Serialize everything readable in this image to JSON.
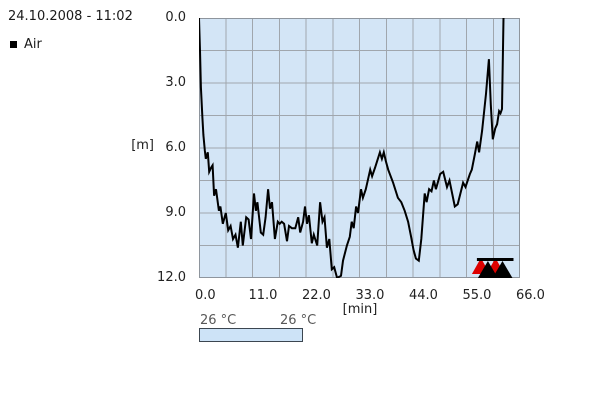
{
  "header": {
    "datetime": "24.10.2008 - 11:02"
  },
  "legend": {
    "gas_label": "Air",
    "swatch_color": "#000000"
  },
  "temperature": {
    "start_label": "26 °C",
    "end_label": "26 °C",
    "bar_fill": "#cde3f7",
    "bar_border": "#3c4650"
  },
  "chart_data": {
    "type": "line",
    "title": "",
    "xlabel": "[min]",
    "ylabel": "[m]",
    "xlim": [
      0,
      66
    ],
    "ylim": [
      12,
      0
    ],
    "y_axis_inverted_depth": true,
    "x_ticks": [
      "0.0",
      "11.0",
      "22.0",
      "33.0",
      "44.0",
      "55.0",
      "66.0"
    ],
    "y_ticks": [
      "0.0",
      "3.0",
      "6.0",
      "9.0",
      "12.0"
    ],
    "grid": {
      "on": true,
      "x_step_min": 5.5,
      "y_step_m": 1.5
    },
    "colors": {
      "plot_bg": "#d3e5f6",
      "grid": "#a0a6ad",
      "border": "#8e959d",
      "line": "#000000",
      "alarm_red": "#dd0000",
      "alarm_black": "#000000"
    },
    "series": [
      {
        "name": "Depth",
        "units": {
          "x": "min",
          "y": "m"
        },
        "points": [
          [
            0,
            0
          ],
          [
            0.2,
            1.5
          ],
          [
            0.4,
            3.2
          ],
          [
            0.7,
            4.6
          ],
          [
            0.9,
            5.4
          ],
          [
            1.2,
            6.1
          ],
          [
            1.4,
            6.5
          ],
          [
            1.8,
            6.2
          ],
          [
            2.1,
            7.1
          ],
          [
            2.5,
            6.9
          ],
          [
            2.8,
            6.8
          ],
          [
            3.1,
            8.2
          ],
          [
            3.5,
            7.9
          ],
          [
            4.1,
            8.9
          ],
          [
            4.4,
            8.7
          ],
          [
            4.9,
            9.5
          ],
          [
            5.5,
            9.0
          ],
          [
            6.0,
            9.8
          ],
          [
            6.5,
            9.6
          ],
          [
            7.0,
            10.2
          ],
          [
            7.5,
            10.0
          ],
          [
            8.0,
            10.6
          ],
          [
            8.6,
            9.4
          ],
          [
            9.0,
            10.5
          ],
          [
            9.7,
            9.2
          ],
          [
            10.2,
            9.3
          ],
          [
            10.7,
            10.2
          ],
          [
            11.3,
            8.1
          ],
          [
            11.7,
            8.9
          ],
          [
            12.0,
            8.5
          ],
          [
            12.7,
            9.9
          ],
          [
            13.2,
            10.0
          ],
          [
            13.7,
            9.2
          ],
          [
            14.2,
            7.9
          ],
          [
            14.6,
            8.8
          ],
          [
            15.0,
            8.5
          ],
          [
            15.6,
            10.2
          ],
          [
            16.2,
            9.4
          ],
          [
            16.6,
            9.5
          ],
          [
            17.0,
            9.4
          ],
          [
            17.5,
            9.5
          ],
          [
            18.1,
            10.3
          ],
          [
            18.5,
            9.6
          ],
          [
            19.1,
            9.7
          ],
          [
            19.8,
            9.7
          ],
          [
            20.4,
            9.2
          ],
          [
            20.8,
            9.9
          ],
          [
            21.4,
            9.4
          ],
          [
            21.8,
            8.7
          ],
          [
            22.2,
            9.5
          ],
          [
            22.6,
            9.1
          ],
          [
            23.2,
            10.4
          ],
          [
            23.6,
            10.0
          ],
          [
            24.3,
            10.5
          ],
          [
            24.9,
            8.5
          ],
          [
            25.4,
            9.4
          ],
          [
            25.8,
            9.2
          ],
          [
            26.3,
            10.6
          ],
          [
            26.8,
            10.2
          ],
          [
            27.3,
            11.6
          ],
          [
            27.8,
            11.5
          ],
          [
            28.4,
            12.0
          ],
          [
            29.2,
            11.9
          ],
          [
            29.6,
            11.2
          ],
          [
            30.4,
            10.5
          ],
          [
            31.0,
            10.1
          ],
          [
            31.4,
            9.4
          ],
          [
            31.8,
            9.7
          ],
          [
            32.3,
            8.7
          ],
          [
            32.7,
            9.0
          ],
          [
            33.3,
            7.9
          ],
          [
            33.7,
            8.3
          ],
          [
            34.3,
            7.9
          ],
          [
            35.2,
            7.0
          ],
          [
            35.6,
            7.3
          ],
          [
            36.2,
            6.9
          ],
          [
            37.2,
            6.2
          ],
          [
            37.6,
            6.5
          ],
          [
            38.0,
            6.2
          ],
          [
            38.4,
            6.6
          ],
          [
            38.9,
            7.0
          ],
          [
            39.9,
            7.6
          ],
          [
            40.9,
            8.3
          ],
          [
            41.6,
            8.5
          ],
          [
            42.3,
            8.9
          ],
          [
            43.0,
            9.4
          ],
          [
            43.6,
            10.1
          ],
          [
            44.1,
            10.7
          ],
          [
            44.6,
            11.1
          ],
          [
            45.2,
            11.2
          ],
          [
            45.7,
            10.2
          ],
          [
            46.4,
            8.1
          ],
          [
            46.8,
            8.5
          ],
          [
            47.3,
            7.9
          ],
          [
            47.8,
            8.0
          ],
          [
            48.3,
            7.5
          ],
          [
            48.7,
            7.9
          ],
          [
            49.6,
            7.2
          ],
          [
            50.2,
            7.1
          ],
          [
            51.0,
            7.8
          ],
          [
            51.5,
            7.5
          ],
          [
            52.6,
            8.7
          ],
          [
            53.2,
            8.6
          ],
          [
            54.3,
            7.6
          ],
          [
            54.8,
            7.8
          ],
          [
            55.7,
            7.2
          ],
          [
            56.1,
            7.0
          ],
          [
            56.7,
            6.3
          ],
          [
            57.2,
            5.7
          ],
          [
            57.6,
            6.2
          ],
          [
            58.2,
            5.2
          ],
          [
            59.0,
            3.5
          ],
          [
            59.6,
            1.9
          ],
          [
            60.0,
            4.0
          ],
          [
            60.4,
            5.6
          ],
          [
            60.9,
            5.1
          ],
          [
            61.3,
            4.9
          ],
          [
            61.7,
            4.3
          ],
          [
            62.0,
            4.4
          ],
          [
            62.3,
            4.2
          ],
          [
            62.6,
            0
          ]
        ]
      }
    ],
    "event_markers": [
      {
        "type": "ascent-alarm-triangle",
        "time_min": 59.4
      },
      {
        "type": "ascent-alarm-triangle",
        "time_min": 62.4
      }
    ]
  }
}
